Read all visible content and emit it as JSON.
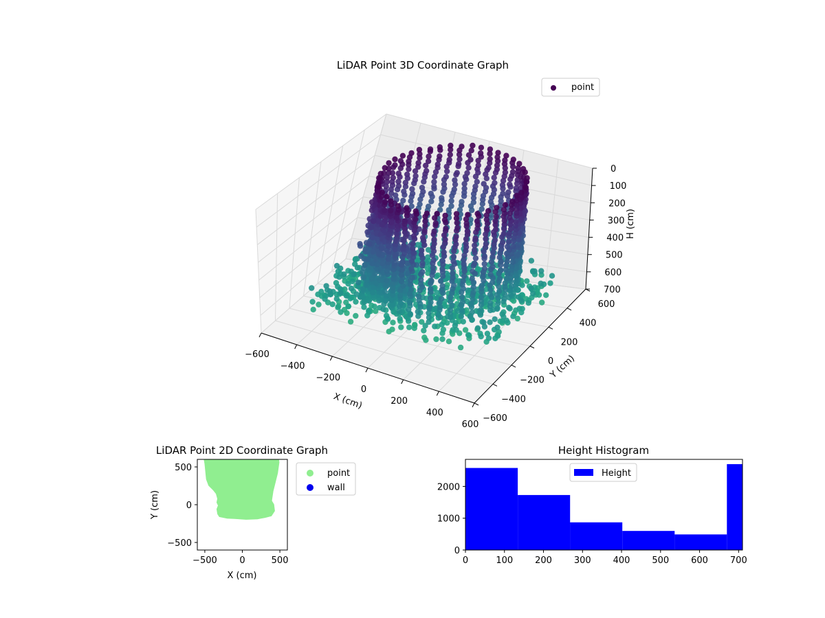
{
  "chart_data": [
    {
      "type": "scatter",
      "projection": "3d",
      "title": "LiDAR Point 3D Coordinate Graph",
      "xlabel": "X (cm)",
      "ylabel": "Y (cm)",
      "zlabel": "H (cm)",
      "xlim": [
        -600,
        600
      ],
      "ylim": [
        -600,
        600
      ],
      "zlim": [
        700,
        0
      ],
      "xticks": [
        -600,
        -400,
        -200,
        0,
        200,
        400,
        600
      ],
      "yticks": [
        -600,
        -400,
        -200,
        0,
        200,
        400,
        600
      ],
      "zticks": [
        0,
        100,
        200,
        300,
        400,
        500,
        600,
        700
      ],
      "xtick_labels": [
        "−600",
        "−400",
        "−200",
        "0",
        "200",
        "400",
        "600"
      ],
      "ytick_labels": [
        "−600",
        "−400",
        "−200",
        "0",
        "200",
        "400",
        "600"
      ],
      "ztick_labels": [
        "0",
        "100",
        "200",
        "300",
        "400",
        "500",
        "600",
        "700"
      ],
      "colormap": "viridis",
      "color_by": "height",
      "legend": {
        "entries": [
          "point"
        ],
        "location": "upper-right"
      },
      "series": [
        {
          "name": "point",
          "legend_color": "#440154",
          "structure": "cylindrical wall of vertical point columns with a room-shaped floor",
          "wall_center": [
            50,
            150
          ],
          "wall_radius": 360,
          "wall_height_range": [
            0,
            560
          ],
          "floor_x_range": [
            -500,
            480
          ],
          "floor_y_range": [
            -200,
            600
          ],
          "floor_height_range": [
            560,
            700
          ]
        }
      ],
      "grid": true
    },
    {
      "type": "scatter",
      "title": "LiDAR Point 2D Coordinate Graph",
      "xlabel": "X (cm)",
      "ylabel": "Y (cm)",
      "xlim": [
        -600,
        600
      ],
      "ylim": [
        -600,
        600
      ],
      "xticks": [
        -500,
        0,
        500
      ],
      "yticks": [
        -500,
        0,
        500
      ],
      "xtick_labels": [
        "−500",
        "0",
        "500"
      ],
      "ytick_labels": [
        "−500",
        "0",
        "500"
      ],
      "legend": {
        "entries": [
          "point",
          "wall"
        ],
        "location": "outside-right"
      },
      "series": [
        {
          "name": "point",
          "color": "#90ee90",
          "outline": [
            [
              -500,
              600
            ],
            [
              -490,
              540
            ],
            [
              -480,
              440
            ],
            [
              -470,
              340
            ],
            [
              -440,
              260
            ],
            [
              -380,
              200
            ],
            [
              -340,
              150
            ],
            [
              -320,
              80
            ],
            [
              -330,
              30
            ],
            [
              -310,
              -10
            ],
            [
              -330,
              -60
            ],
            [
              -320,
              -120
            ],
            [
              -300,
              -150
            ],
            [
              -200,
              -170
            ],
            [
              -100,
              -175
            ],
            [
              50,
              -185
            ],
            [
              200,
              -180
            ],
            [
              300,
              -160
            ],
            [
              380,
              -140
            ],
            [
              420,
              -80
            ],
            [
              410,
              0
            ],
            [
              380,
              50
            ],
            [
              400,
              180
            ],
            [
              430,
              300
            ],
            [
              460,
              420
            ],
            [
              480,
              560
            ],
            [
              475,
              600
            ]
          ]
        },
        {
          "name": "wall",
          "color": "#0000ee",
          "points": []
        }
      ]
    },
    {
      "type": "bar",
      "title": "Height Histogram",
      "xlabel": "",
      "ylabel": "",
      "xlim": [
        0,
        710
      ],
      "ylim": [
        0,
        2850
      ],
      "xticks": [
        0,
        100,
        200,
        300,
        400,
        500,
        600,
        700
      ],
      "yticks": [
        0,
        1000,
        2000
      ],
      "xtick_labels": [
        "0",
        "100",
        "200",
        "300",
        "400",
        "500",
        "600",
        "700"
      ],
      "ytick_labels": [
        "0",
        "1000",
        "2000"
      ],
      "bin_edges": [
        0,
        134,
        268,
        402,
        536,
        670,
        710
      ],
      "series": [
        {
          "name": "Height",
          "color": "#0000ff",
          "values": [
            2580,
            1730,
            870,
            600,
            490,
            2700
          ]
        }
      ],
      "legend": {
        "entries": [
          "Height"
        ],
        "location": "upper-center"
      },
      "grid": false
    }
  ]
}
